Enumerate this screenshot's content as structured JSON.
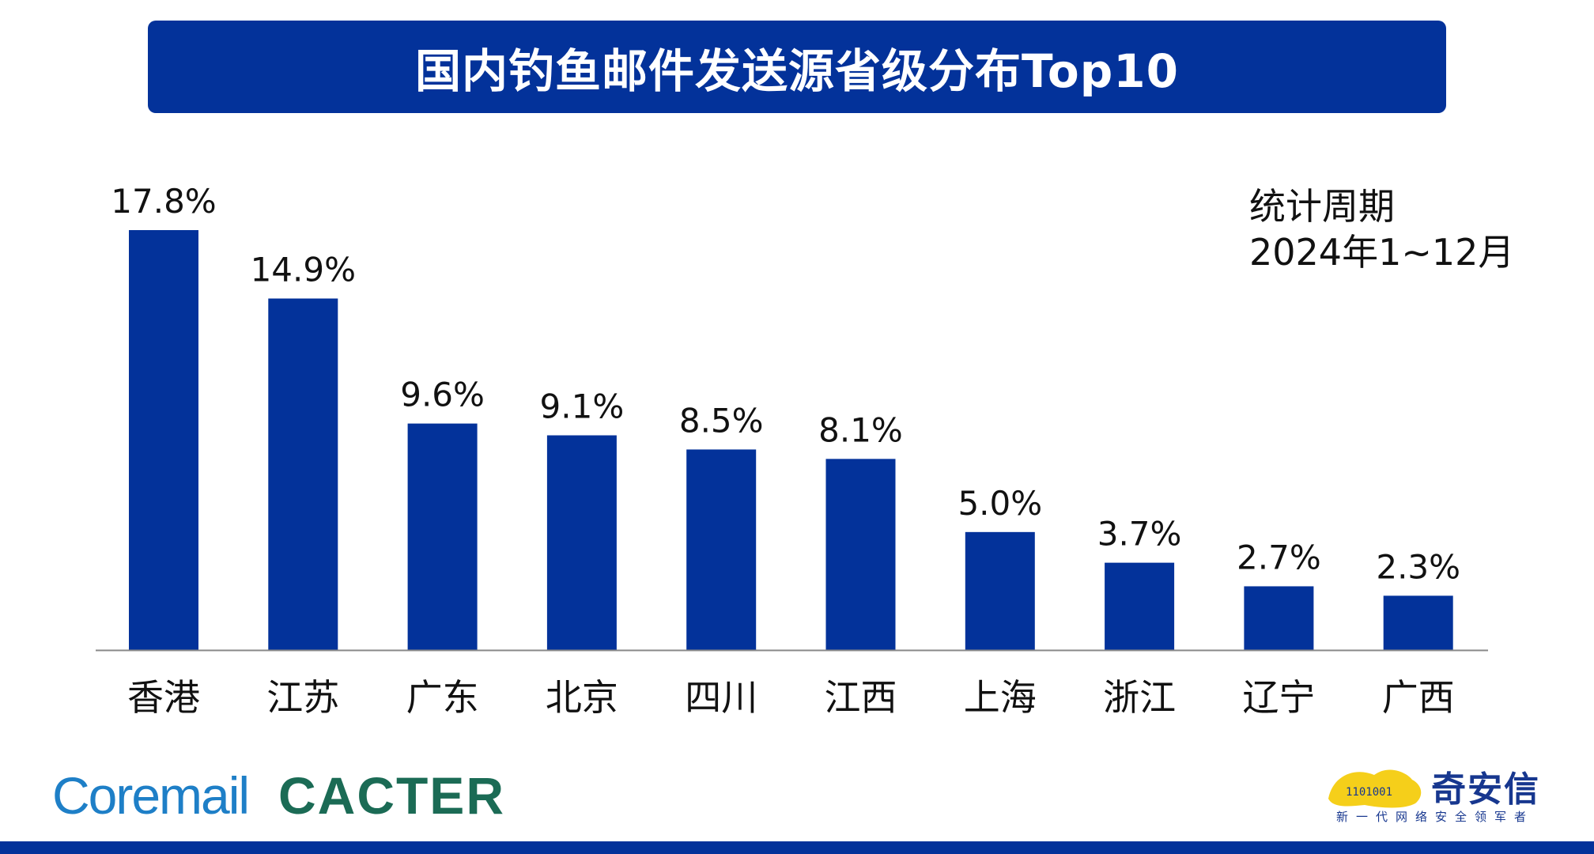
{
  "title": "国内钓鱼邮件发送源省级分布Top10",
  "period": {
    "line1": "统计周期",
    "line2": "2024年1~12月"
  },
  "chart_data": {
    "type": "bar",
    "categories": [
      "香港",
      "江苏",
      "广东",
      "北京",
      "四川",
      "江西",
      "上海",
      "浙江",
      "辽宁",
      "广西"
    ],
    "values": [
      17.8,
      14.9,
      9.6,
      9.1,
      8.5,
      8.1,
      5.0,
      3.7,
      2.7,
      2.3
    ],
    "data_labels": [
      "17.8%",
      "14.9%",
      "9.6%",
      "9.1%",
      "8.5%",
      "8.1%",
      "5.0%",
      "3.7%",
      "2.7%",
      "2.3%"
    ],
    "title": "国内钓鱼邮件发送源省级分布Top10",
    "xlabel": "",
    "ylabel": "",
    "ylim": [
      0,
      17.8
    ],
    "grid": false,
    "bar_color": "#03329a",
    "axis_color": "#888888"
  },
  "brands": {
    "coremail": "Coremail",
    "cacter": "CACTER",
    "qax_name": "奇安信",
    "qax_slogan": "新一代网络安全领军者",
    "qax_binary": "1101001"
  },
  "colors": {
    "primary": "#03329a",
    "coremail": "#1e7fc7",
    "cacter": "#1b6b55",
    "qax_yellow": "#f5cf1a"
  }
}
